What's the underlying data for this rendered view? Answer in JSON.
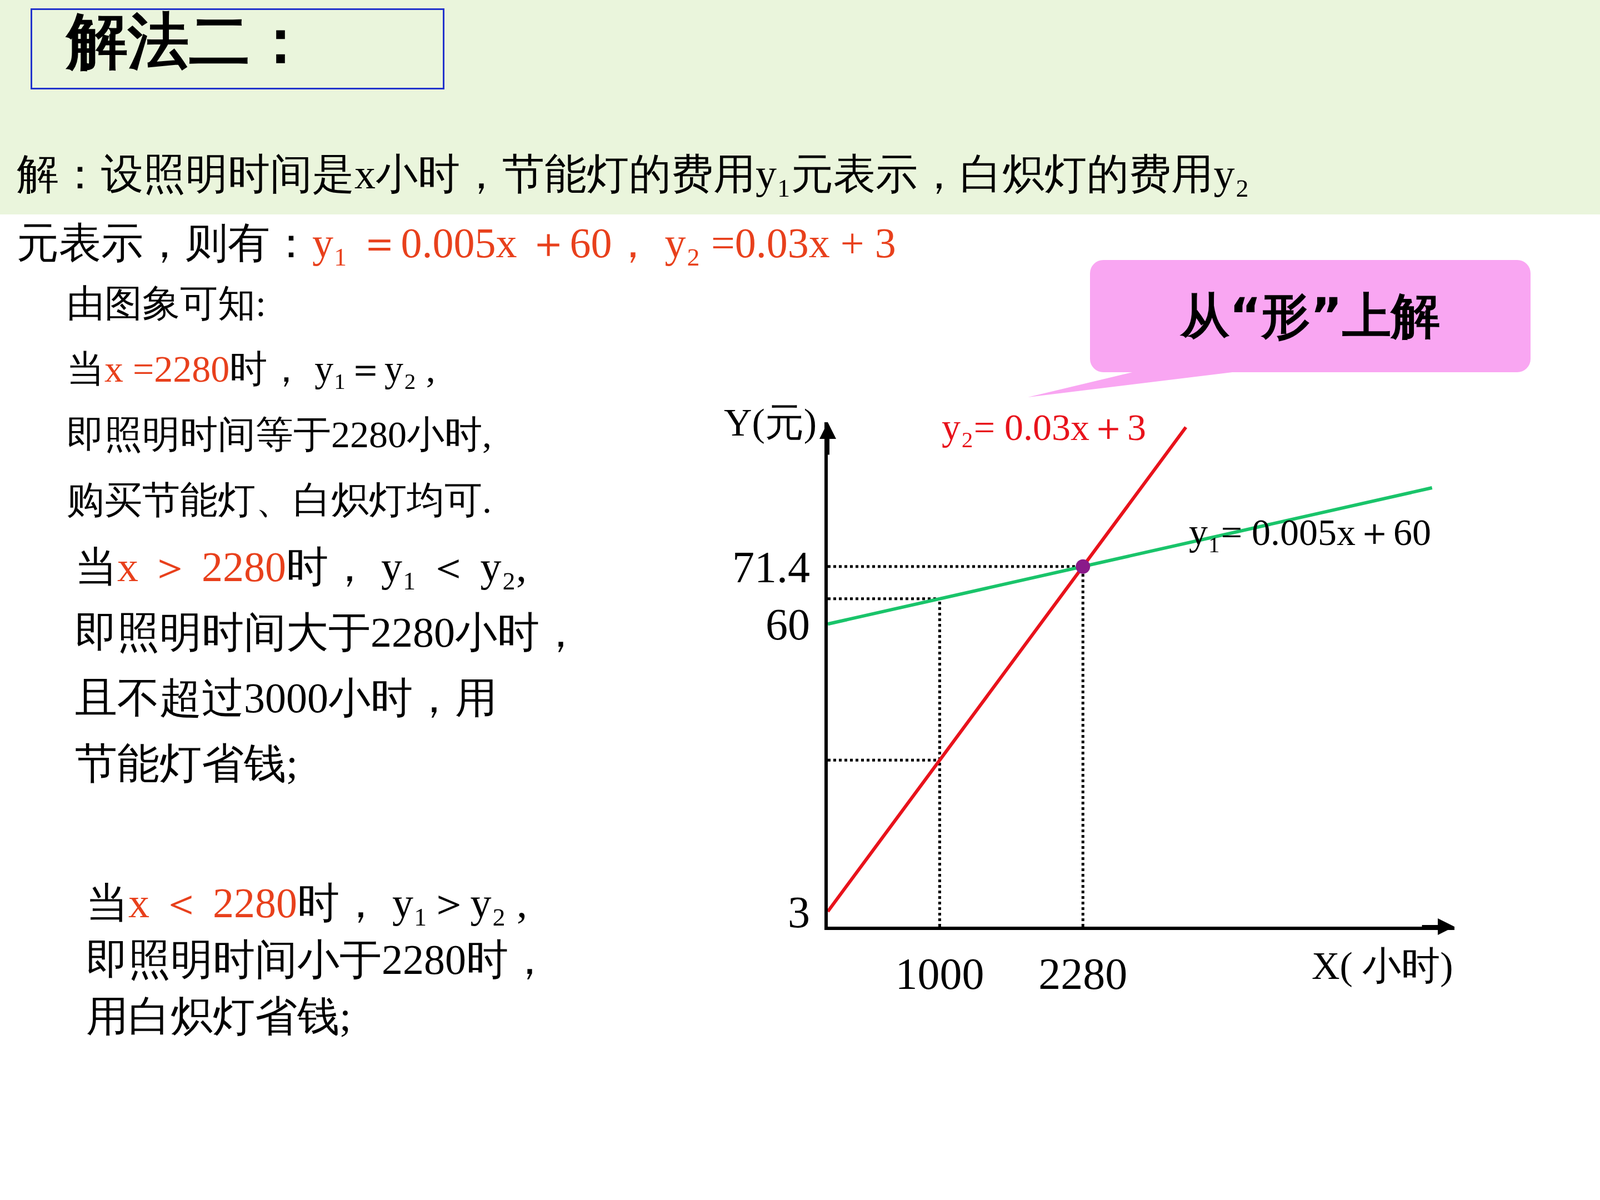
{
  "header": {
    "title": "解法二："
  },
  "intro": [
    [
      {
        "text": "解：设照明时间是x小时，节能灯的费用y₁元表示，白炽灯的费用y₂"
      }
    ],
    [
      {
        "text": "元表示，则有："
      },
      {
        "text": "y₁ ＝0.005x ＋60，  y₂ =0.03x + 3",
        "color": "#e8401c"
      }
    ]
  ],
  "callout": "从“形”上解",
  "notes": [
    [
      [
        {
          "text": "由图象可知:"
        }
      ],
      [
        {
          "text": "当"
        },
        {
          "text": "x =2280",
          "color": "#e8401c"
        },
        {
          "text": "时， y₁＝y₂ ,"
        }
      ],
      [
        {
          "text": "即照明时间等于2280小时,"
        }
      ],
      [
        {
          "text": "购买节能灯、白炽灯均可."
        }
      ]
    ],
    [
      [
        {
          "text": "当"
        },
        {
          "text": "x ＞ 2280",
          "color": "#e8401c"
        },
        {
          "text": "时， y₁ ＜ y₂,"
        }
      ],
      [
        {
          "text": "即照明时间大于2280小时，"
        }
      ],
      [
        {
          "text": "且不超过3000小时，用"
        }
      ],
      [
        {
          "text": "节能灯省钱;"
        }
      ]
    ],
    [
      [
        {
          "text": "当"
        },
        {
          "text": "x ＜ 2280",
          "color": "#e8401c"
        },
        {
          "text": "时， y₁＞y₂ ,"
        }
      ],
      [
        {
          "text": "即照明时间小于2280时，"
        }
      ],
      [
        {
          "text": "用白炽灯省钱;"
        }
      ]
    ]
  ],
  "chart_data": {
    "type": "line",
    "x_label": "X( 小时)",
    "y_label": "Y(元)",
    "xlim": [
      0,
      5600
    ],
    "ylim": [
      0,
      100
    ],
    "xticks": [
      1000,
      2280
    ],
    "yticks": [
      3,
      60,
      71.4
    ],
    "grid": false,
    "series": [
      {
        "name": "y₂= 0.03x＋3",
        "color": "#e8121b",
        "x": [
          0,
          1000,
          2280,
          3200
        ],
        "values": [
          3,
          33,
          71.4,
          99
        ]
      },
      {
        "name": "y₁= 0.005x＋60",
        "color": "#19c46a",
        "x": [
          0,
          1000,
          2280,
          5400
        ],
        "values": [
          60,
          65,
          71.4,
          87
        ]
      }
    ],
    "intersection": {
      "x": 2280,
      "y": 71.4,
      "color": "#8a1a8a"
    },
    "guides": [
      {
        "x": 1000,
        "y": [
          33,
          65
        ]
      },
      {
        "x": 2280,
        "y": [
          71.4
        ]
      }
    ]
  }
}
